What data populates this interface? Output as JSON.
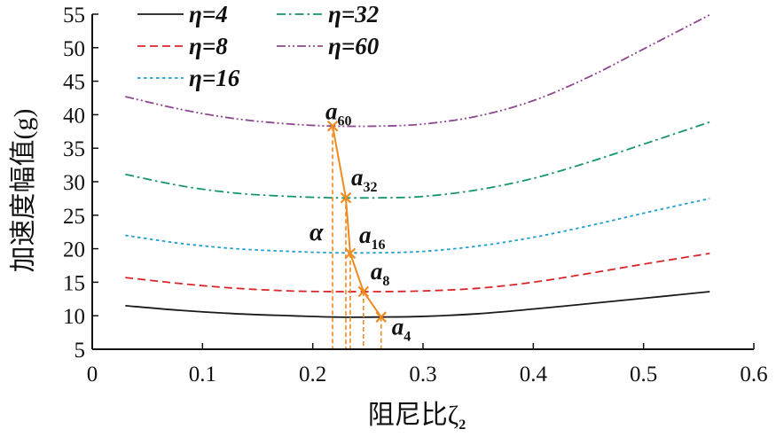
{
  "chart_data": {
    "type": "line",
    "xlabel": "阻尼比ζ",
    "xlabel_sub": "2",
    "ylabel": "加速度幅值(g)",
    "xlim": [
      0,
      0.6
    ],
    "ylim": [
      5,
      55
    ],
    "x_ticks": [
      0,
      0.1,
      0.2,
      0.3,
      0.4,
      0.5,
      0.6
    ],
    "x_tick_labels": [
      "0",
      "0.1",
      "0.2",
      "0.3",
      "0.4",
      "0.5",
      "0.6"
    ],
    "y_ticks": [
      5,
      10,
      15,
      20,
      25,
      30,
      35,
      40,
      45,
      50,
      55
    ],
    "y_tick_labels": [
      "5",
      "10",
      "15",
      "20",
      "25",
      "30",
      "35",
      "40",
      "45",
      "50",
      "55"
    ],
    "grid": false,
    "legend_position": "top-left",
    "x": [
      0.03,
      0.08,
      0.13,
      0.18,
      0.22,
      0.26,
      0.3,
      0.35,
      0.4,
      0.45,
      0.5,
      0.56
    ],
    "series": [
      {
        "name": "η=4",
        "color": "#1a1a1a",
        "dash": "solid",
        "y": [
          11.5,
          10.8,
          10.3,
          10.0,
          9.8,
          9.8,
          9.9,
          10.3,
          11.0,
          11.8,
          12.6,
          13.6
        ]
      },
      {
        "name": "η=8",
        "color": "#d9262a",
        "dash": "dashed",
        "y": [
          15.7,
          14.8,
          14.1,
          13.7,
          13.6,
          13.6,
          13.7,
          14.1,
          15.0,
          16.3,
          17.7,
          19.3
        ]
      },
      {
        "name": "η=16",
        "color": "#1f9fd0",
        "dash": "dotted",
        "y": [
          22.0,
          20.8,
          20.0,
          19.6,
          19.4,
          19.4,
          19.6,
          20.4,
          21.7,
          23.4,
          25.3,
          27.5
        ]
      },
      {
        "name": "η=32",
        "color": "#169470",
        "dash": "dashdot",
        "y": [
          31.1,
          29.4,
          28.3,
          27.8,
          27.6,
          27.6,
          27.8,
          28.8,
          30.5,
          32.9,
          35.6,
          38.9
        ]
      },
      {
        "name": "η=60",
        "color": "#8e4a8e",
        "dash": "dashdotdot",
        "y": [
          42.7,
          40.8,
          39.4,
          38.6,
          38.3,
          38.3,
          38.6,
          39.8,
          42.1,
          45.6,
          49.8,
          54.9
        ]
      }
    ],
    "optimal_points": {
      "name": "α",
      "color": "#ef8a1e",
      "points": [
        {
          "label": "a",
          "sub": "60",
          "x": 0.218,
          "y": 38.3
        },
        {
          "label": "a",
          "sub": "32",
          "x": 0.23,
          "y": 27.6
        },
        {
          "label": "a",
          "sub": "16",
          "x": 0.234,
          "y": 19.3
        },
        {
          "label": "a",
          "sub": "8",
          "x": 0.246,
          "y": 13.6
        },
        {
          "label": "a",
          "sub": "4",
          "x": 0.262,
          "y": 9.8
        }
      ]
    }
  }
}
